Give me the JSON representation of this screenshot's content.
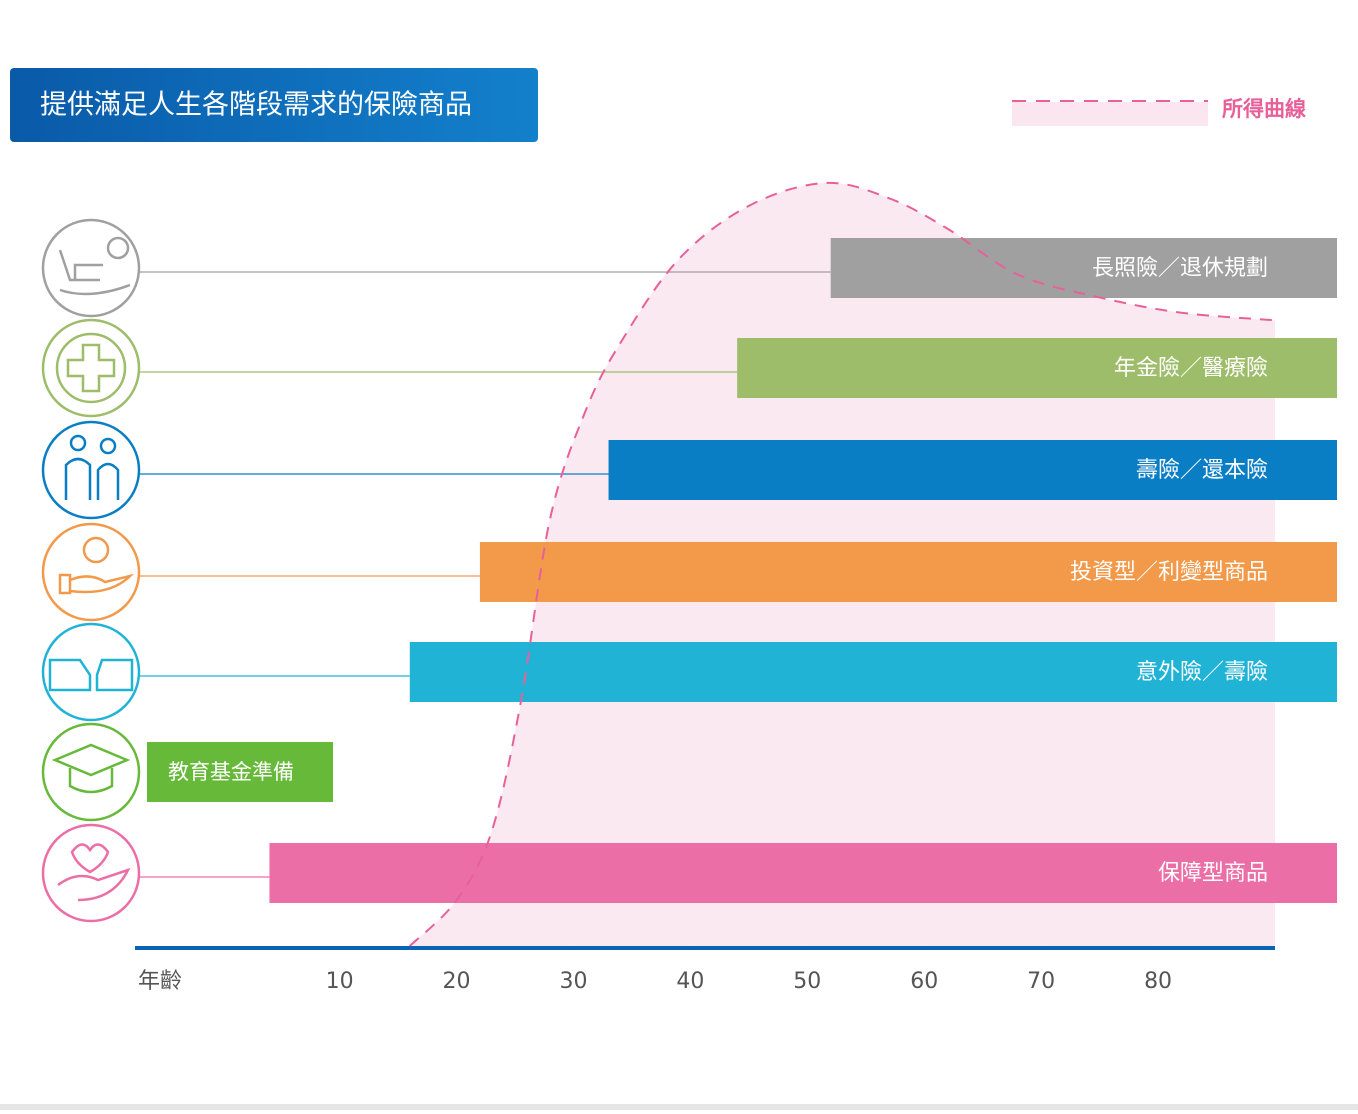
{
  "chart_data": {
    "type": "bar",
    "title": "提供滿足人生各階段需求的保險商品",
    "xlabel": "年齡",
    "xlim": [
      -7.5,
      90
    ],
    "xticks": [
      10,
      20,
      30,
      40,
      50,
      60,
      70,
      80
    ],
    "categories": [
      "長照險／退休規劃",
      "年金險／醫療險",
      "壽險／還本險",
      "投資型／利變型商品",
      "意外險／壽險",
      "教育基金準備",
      "保障型商品"
    ],
    "values": [
      52,
      44,
      33,
      22,
      16,
      null,
      4
    ],
    "colors": [
      "#a0a0a0",
      "#9ebd6a",
      "#0a7ec4",
      "#f2994a",
      "#21b3d6",
      "#67b93a",
      "#ec6ea6"
    ],
    "line": {
      "name": "所得曲線",
      "color": "#e8609a",
      "x": [
        16,
        20,
        23,
        25.5,
        28,
        31,
        34,
        39,
        45,
        51.5,
        57,
        62,
        68,
        75,
        82,
        90
      ],
      "values": [
        0,
        6,
        15,
        32,
        56,
        70,
        79,
        90,
        97,
        100,
        98,
        94,
        88,
        85,
        83,
        82
      ]
    },
    "ylim": [
      0,
      100
    ]
  }
}
